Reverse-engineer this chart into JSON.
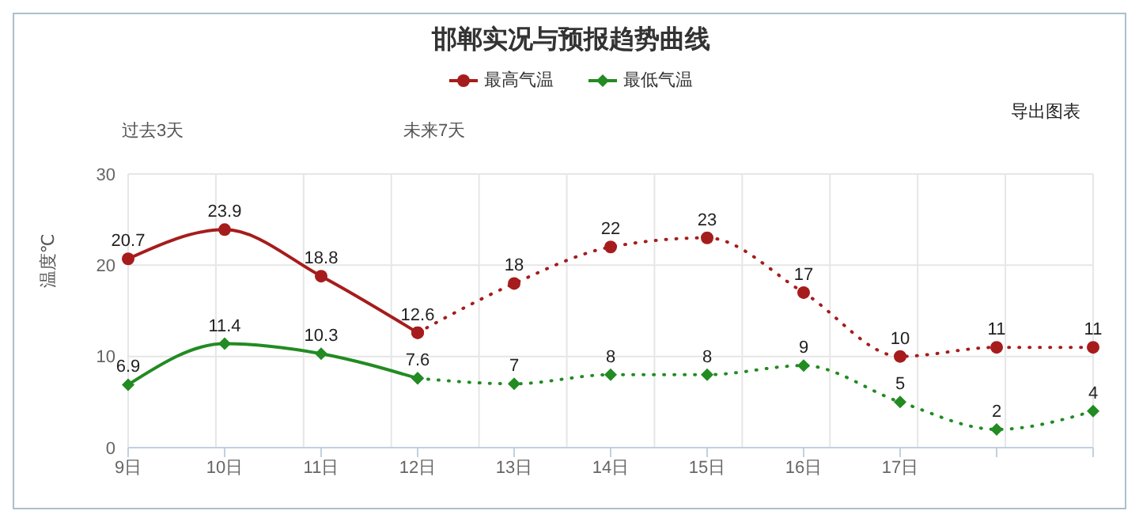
{
  "chart_data": {
    "type": "line",
    "title": "邯郸实况与预报趋势曲线",
    "ylabel": "温度℃",
    "annotations": [
      "过去3天",
      "未来7天",
      "导出图表"
    ],
    "categories": [
      "9日",
      "10日",
      "11日",
      "12日",
      "13日",
      "14日",
      "15日",
      "16日",
      "17日",
      null,
      null
    ],
    "series": [
      {
        "name": "最高气温",
        "color": "#a61c1c",
        "marker": "circle",
        "line_style": "solid",
        "values": [
          20.7,
          23.9,
          18.8,
          12.6,
          null,
          null,
          null,
          null,
          null,
          null,
          null
        ]
      },
      {
        "color": "#a61c1c",
        "marker": "circle",
        "line_style": "dotted",
        "values": [
          null,
          null,
          null,
          12.6,
          18,
          22,
          23,
          17,
          10,
          11,
          11
        ],
        "value_labels": [
          null,
          null,
          null,
          null,
          "18",
          "22",
          "23",
          "17",
          "10",
          "11",
          "11"
        ]
      },
      {
        "name": "最低气温",
        "color": "#228b22",
        "marker": "diamond",
        "line_style": "solid",
        "values": [
          6.9,
          11.4,
          10.3,
          7.6,
          null,
          null,
          null,
          null,
          null,
          null,
          null
        ]
      },
      {
        "color": "#228b22",
        "marker": "diamond",
        "line_style": "dotted",
        "values": [
          null,
          null,
          null,
          7.6,
          7,
          8,
          8,
          9,
          5,
          2,
          4
        ],
        "value_labels": [
          null,
          null,
          null,
          null,
          "7",
          "8",
          "8",
          "9",
          "5",
          "2",
          "4"
        ]
      }
    ],
    "ylim": [
      0,
      30
    ],
    "yticks": [
      0,
      10,
      20,
      30
    ],
    "grid": true,
    "legend": "top",
    "data_labels": true
  }
}
